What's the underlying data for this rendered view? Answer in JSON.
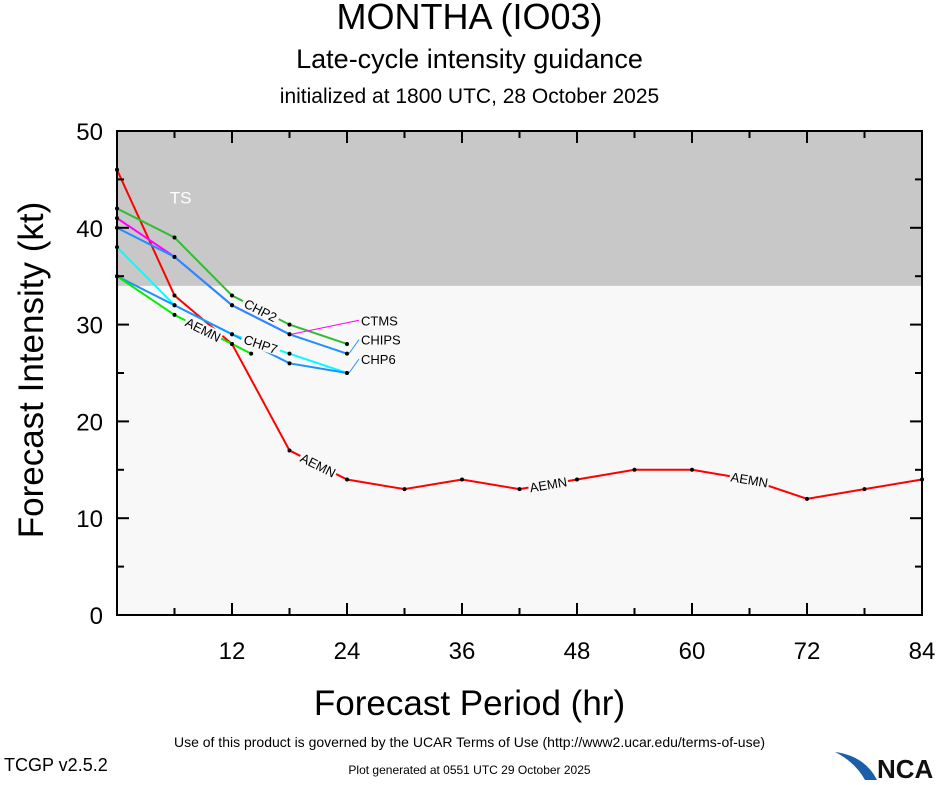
{
  "chart_data": {
    "type": "line",
    "title": "MONTHA (IO03)",
    "subtitle": "Late-cycle intensity guidance",
    "subtitle2": "initialized at 1800 UTC, 28 October 2025",
    "xlabel": "Forecast Period (hr)",
    "ylabel": "Forecast Intensity (kt)",
    "xlim": [
      0,
      84
    ],
    "ylim": [
      0,
      50
    ],
    "xticks": [
      12,
      24,
      36,
      48,
      60,
      72,
      84
    ],
    "yticks": [
      0,
      10,
      20,
      30,
      40,
      50
    ],
    "grid": false,
    "bands": [
      {
        "label": "TS",
        "from": 34,
        "to": 50,
        "color": "#c8c8c8"
      }
    ],
    "background": "#f8f8f8",
    "series": [
      {
        "name": "AEMN",
        "color": "#ff0000",
        "x": [
          0,
          6,
          12,
          18,
          24,
          30,
          36,
          42,
          48,
          54,
          60,
          66,
          72,
          78,
          84
        ],
        "y": [
          46,
          33,
          28,
          17,
          14,
          13,
          14,
          13,
          14,
          15,
          15,
          14,
          12,
          13,
          14
        ],
        "label_at": [
          21,
          45,
          66
        ]
      },
      {
        "name": "CHP2",
        "color": "#33bb33",
        "x": [
          0,
          6,
          12,
          18,
          24
        ],
        "y": [
          42,
          39,
          33,
          30,
          28
        ],
        "label_at": [
          15
        ]
      },
      {
        "name": "CTMS",
        "color": "#ff00ff",
        "x": [
          0,
          6,
          12,
          18
        ],
        "y": [
          41,
          37,
          32,
          29
        ],
        "label_at": [
          16
        ]
      },
      {
        "name": "CHIPS",
        "color": "#1e90ff",
        "x": [
          0,
          6,
          12,
          18,
          24
        ],
        "y": [
          40,
          37,
          32,
          29,
          27
        ],
        "label_at": [
          16
        ]
      },
      {
        "name": "CHP7",
        "color": "#00ffff",
        "x": [
          0,
          6,
          12,
          18,
          24
        ],
        "y": [
          38,
          32,
          29,
          27,
          25
        ],
        "label_at": [
          15
        ]
      },
      {
        "name": "CHP6",
        "color": "#1e90ff",
        "x": [
          0,
          6,
          12,
          18,
          24
        ],
        "y": [
          35,
          32,
          29,
          26,
          25
        ],
        "label_at": [
          16
        ]
      },
      {
        "name": "AEMN",
        "color": "#00ee00",
        "x": [
          0,
          6,
          12,
          14
        ],
        "y": [
          35,
          31,
          28,
          27
        ],
        "label_at": [
          9
        ]
      }
    ]
  },
  "footer": {
    "terms": "Use of this product is governed by the UCAR Terms of Use (http://www2.ucar.edu/terms-of-use)",
    "version": "TCGP v2.5.2",
    "generated": "Plot generated at 0551 UTC   29 October 2025",
    "logo": "NCAR"
  }
}
